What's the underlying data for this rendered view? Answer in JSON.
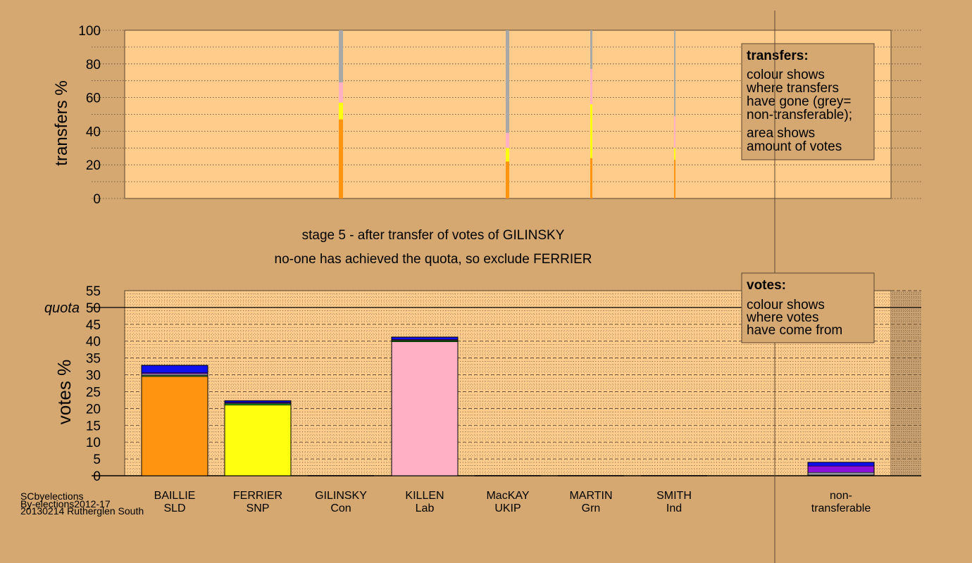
{
  "colors": {
    "background": "#d5a872",
    "plot_background": "#ffcc8c",
    "legend_background": "#d5a872",
    "SLD": "#ff9410",
    "SNP": "#ffff10",
    "Lab": "#ffb0c4",
    "Con": "#1010ee",
    "UKIP": "#8c10dc",
    "Grn": "#10a010",
    "Ind": "#9090a0",
    "non_transferable": "#a8a8a8"
  },
  "stage_text": {
    "line1": "stage 5 - after transfer of votes of GILINSKY",
    "line2": "no-one has achieved the quota, so exclude FERRIER"
  },
  "legend_transfers": {
    "title": "transfers:",
    "lines": [
      "colour shows",
      "where transfers",
      "have gone (grey=",
      "non-transferable);",
      "area shows",
      "amount of votes"
    ]
  },
  "legend_votes": {
    "title": "votes:",
    "lines": [
      "colour shows",
      "where votes",
      "have come from"
    ]
  },
  "footer": {
    "line1": "SCbyelections",
    "line2": "By-elections2012-17",
    "line3": "20130214 Rutherglen South"
  },
  "quota_label": "quota",
  "chart_data": [
    {
      "type": "bar",
      "name": "transfers",
      "ylabel": "transfers %",
      "ylim": [
        0,
        100
      ],
      "yticks": [
        0,
        20,
        40,
        60,
        80,
        100
      ],
      "grid": "dotted",
      "note": "stacked 100% bars; bar width proportional to transferred votes",
      "series": [
        {
          "candidate": "GILINSKY",
          "segments": [
            {
              "party": "SLD",
              "value": 47
            },
            {
              "party": "SNP",
              "value": 10
            },
            {
              "party": "Lab",
              "value": 12
            },
            {
              "party": "non_transferable",
              "value": 31
            }
          ]
        },
        {
          "candidate": "MacKAY",
          "segments": [
            {
              "party": "SLD",
              "value": 22
            },
            {
              "party": "SNP",
              "value": 8
            },
            {
              "party": "Lab",
              "value": 9
            },
            {
              "party": "non_transferable",
              "value": 61
            }
          ]
        },
        {
          "candidate": "MARTIN",
          "segments": [
            {
              "party": "SLD",
              "value": 24
            },
            {
              "party": "SNP",
              "value": 32
            },
            {
              "party": "Lab",
              "value": 21
            },
            {
              "party": "non_transferable",
              "value": 23
            }
          ]
        },
        {
          "candidate": "SMITH",
          "segments": [
            {
              "party": "SLD",
              "value": 23
            },
            {
              "party": "SNP",
              "value": 7
            },
            {
              "party": "Lab",
              "value": 19
            },
            {
              "party": "non_transferable",
              "value": 51
            }
          ]
        }
      ]
    },
    {
      "type": "bar",
      "name": "votes",
      "ylabel": "votes %",
      "ylim": [
        0,
        55
      ],
      "yticks": [
        0,
        5,
        10,
        15,
        20,
        25,
        30,
        35,
        40,
        45,
        50,
        55
      ],
      "quota": 50,
      "grid": "dashed",
      "categories": [
        {
          "name": "BAILLIE",
          "party": "SLD"
        },
        {
          "name": "FERRIER",
          "party": "SNP"
        },
        {
          "name": "GILINSKY",
          "party": "Con"
        },
        {
          "name": "KILLEN",
          "party": "Lab"
        },
        {
          "name": "MacKAY",
          "party": "UKIP"
        },
        {
          "name": "MARTIN",
          "party": "Grn"
        },
        {
          "name": "SMITH",
          "party": "Ind"
        },
        {
          "name": "non-",
          "party": "transferable"
        }
      ],
      "bars": [
        {
          "candidate": "BAILLIE",
          "segments": [
            {
              "party": "SLD",
              "value": 29.5
            },
            {
              "party": "Grn",
              "value": 0.3
            },
            {
              "party": "Ind",
              "value": 0.5
            },
            {
              "party": "UKIP",
              "value": 0.3
            },
            {
              "party": "Con",
              "value": 2.2
            }
          ]
        },
        {
          "candidate": "FERRIER",
          "segments": [
            {
              "party": "SNP",
              "value": 21.0
            },
            {
              "party": "Grn",
              "value": 0.4
            },
            {
              "party": "Ind",
              "value": 0.2
            },
            {
              "party": "UKIP",
              "value": 0.2
            },
            {
              "party": "Con",
              "value": 0.5
            }
          ]
        },
        {
          "candidate": "GILINSKY",
          "segments": []
        },
        {
          "candidate": "KILLEN",
          "segments": [
            {
              "party": "Lab",
              "value": 39.8
            },
            {
              "party": "Grn",
              "value": 0.3
            },
            {
              "party": "Ind",
              "value": 0.2
            },
            {
              "party": "UKIP",
              "value": 0.2
            },
            {
              "party": "Con",
              "value": 0.7
            }
          ]
        },
        {
          "candidate": "MacKAY",
          "segments": []
        },
        {
          "candidate": "MARTIN",
          "segments": []
        },
        {
          "candidate": "SMITH",
          "segments": []
        },
        {
          "candidate": "non-transferable",
          "segments": [
            {
              "party": "Grn",
              "value": 0.2
            },
            {
              "party": "Ind",
              "value": 0.8
            },
            {
              "party": "UKIP",
              "value": 1.9
            },
            {
              "party": "Con",
              "value": 1.1
            }
          ]
        }
      ]
    }
  ]
}
